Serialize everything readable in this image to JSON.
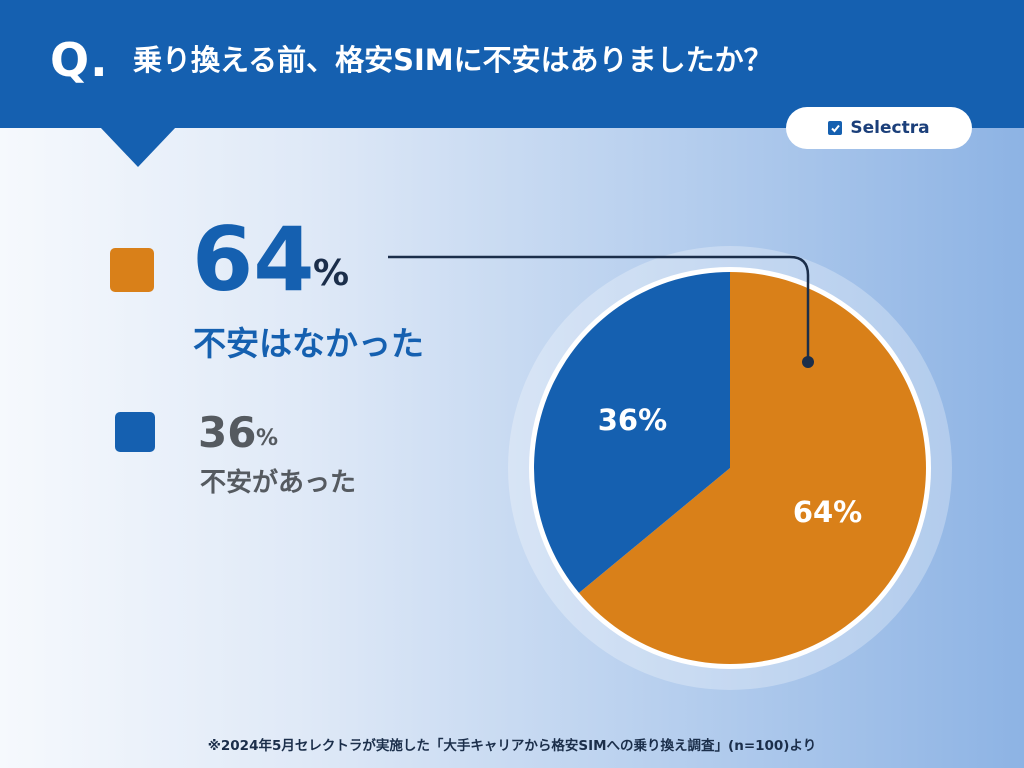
{
  "header": {
    "q_mark": "Q.",
    "question": "乗り換える前、格安SIMに不安はありましたか？"
  },
  "logo": {
    "text": "Selectra",
    "icon": "check-box-icon"
  },
  "legend": {
    "primary": {
      "pct": "64",
      "unit": "%",
      "label": "不安はなかった"
    },
    "secondary": {
      "pct": "36",
      "unit": "%",
      "label": "不安があった"
    }
  },
  "footnote": "※2024年5月セレクトラが実施した「大手キャリアから格安SIMへの乗り換え調査」(n=100)より",
  "colors": {
    "orange": "#d98019",
    "blue": "#1560b0",
    "ink": "#1b2e4a",
    "gray": "#555a60"
  },
  "chart_data": {
    "type": "pie",
    "categories": [
      "不安はなかった",
      "不安があった"
    ],
    "values": [
      64,
      36
    ],
    "labels": [
      "64%",
      "36%"
    ],
    "colors": [
      "#d98019",
      "#1560b0"
    ],
    "start": "12 o'clock",
    "direction": "clockwise",
    "title": "",
    "legend_placement": "left"
  }
}
